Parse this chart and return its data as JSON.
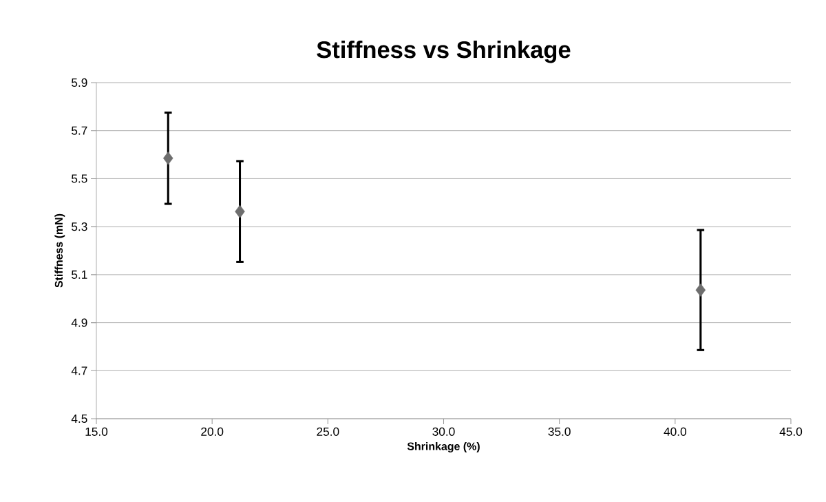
{
  "chart_data": {
    "type": "scatter",
    "title": "Stiffness vs Shrinkage",
    "xlabel": "Shrinkage (%)",
    "ylabel": "Stiffness (mN)",
    "x": [
      18.1,
      21.2,
      41.1
    ],
    "values": [
      5.585,
      5.363,
      5.036
    ],
    "errors": [
      0.19,
      0.21,
      0.25
    ],
    "color": "#6e6e6e",
    "marker": "diamond",
    "grid": "y",
    "xlim": [
      15,
      45
    ],
    "xticks": [
      {
        "value": 15,
        "label": "15.0"
      },
      {
        "value": 20,
        "label": "20.0"
      },
      {
        "value": 25,
        "label": "25.0"
      },
      {
        "value": 30,
        "label": "30.0"
      },
      {
        "value": 35,
        "label": "35.0"
      },
      {
        "value": 40,
        "label": "40.0"
      },
      {
        "value": 45,
        "label": "45.0"
      }
    ],
    "ylim": [
      4.5,
      5.9
    ],
    "yticks": [
      4.5,
      4.7,
      4.9,
      5.1,
      5.3,
      5.5,
      5.7,
      5.9
    ]
  }
}
